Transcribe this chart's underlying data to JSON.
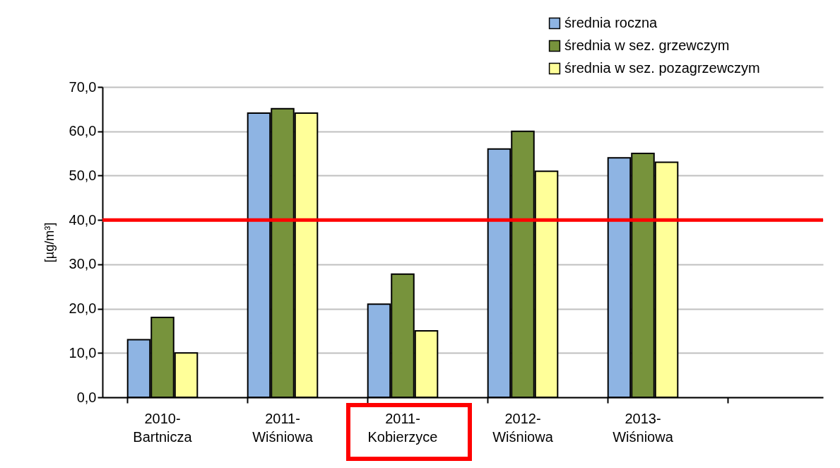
{
  "chart_data": {
    "type": "bar",
    "ylabel": "[µg/m³]",
    "categories": [
      "2010-Bartnicza",
      "2011-Wiśniowa",
      "2011-Kobierzyce",
      "2012-Wiśniowa",
      "2013-Wiśniowa",
      null
    ],
    "series": [
      {
        "name": "średnia roczna",
        "color": "#8eb4e3",
        "values": [
          13,
          64.1,
          21,
          56,
          54,
          null
        ]
      },
      {
        "name": "średnia w sez. grzewczym",
        "color": "#77933c",
        "values": [
          18,
          65.1,
          27.8,
          60,
          55,
          null
        ]
      },
      {
        "name": "średnia w sez. pozagrzewczym",
        "color": "#ffff99",
        "values": [
          10,
          64.1,
          15,
          51,
          53,
          null
        ]
      }
    ],
    "ylim": [
      0,
      70
    ],
    "yticks": [
      {
        "value": 0,
        "label": "0,0"
      },
      {
        "value": 10,
        "label": "10,0"
      },
      {
        "value": 20,
        "label": "20,0"
      },
      {
        "value": 30,
        "label": "30,0"
      },
      {
        "value": 40,
        "label": "40,0"
      },
      {
        "value": 50,
        "label": "50,0"
      },
      {
        "value": 60,
        "label": "60,0"
      },
      {
        "value": 70,
        "label": "70,0"
      }
    ],
    "ref_lines": [
      {
        "axis": "y",
        "value": 40,
        "color": "#ff0000"
      }
    ],
    "grid": "y",
    "legend": "top right"
  }
}
